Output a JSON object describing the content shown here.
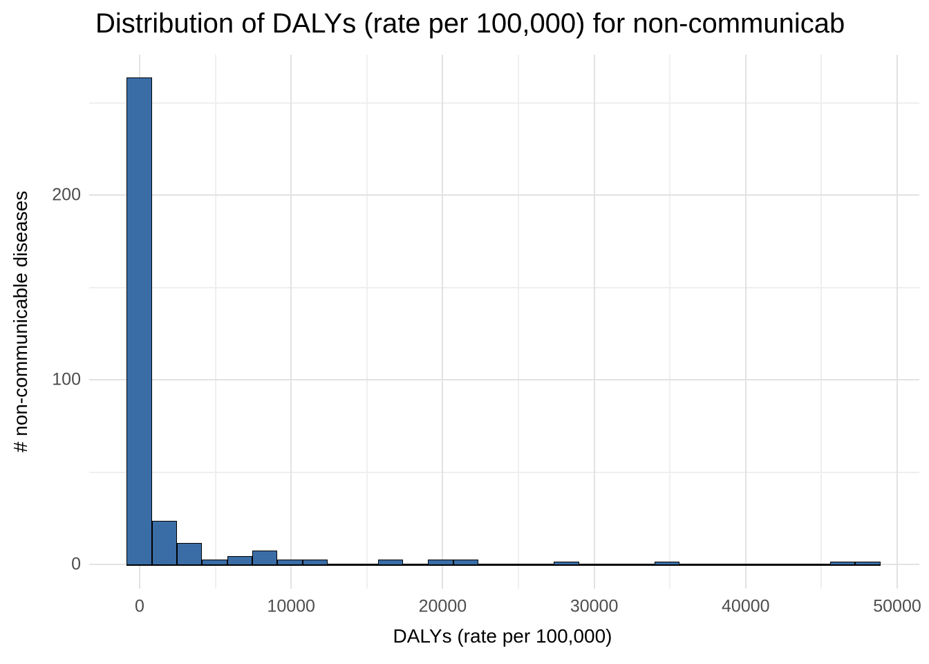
{
  "chart_data": {
    "type": "bar",
    "subtype": "histogram",
    "title": "Distribution of DALYs (rate per 100,000) for non-communicab",
    "xlabel": "DALYs (rate per 100,000)",
    "ylabel": "# non-communicable diseases",
    "bin_start": -850,
    "bin_width": 1658,
    "counts": [
      263,
      23,
      11,
      2,
      4,
      7,
      2,
      2,
      0,
      0,
      2,
      0,
      2,
      2,
      0,
      0,
      0,
      1,
      0,
      0,
      0,
      1,
      0,
      0,
      0,
      0,
      0,
      0,
      1,
      1
    ],
    "x_axis": {
      "ticks": [
        0,
        10000,
        20000,
        30000,
        40000,
        50000
      ],
      "tick_labels": [
        "0",
        "10000",
        "20000",
        "30000",
        "40000",
        "50000"
      ],
      "minor_ticks": [
        5000,
        15000,
        25000,
        35000,
        45000
      ],
      "range": [
        -3350,
        51400
      ]
    },
    "y_axis": {
      "ticks": [
        0,
        100,
        200
      ],
      "tick_labels": [
        "0",
        "100",
        "200"
      ],
      "minor_ticks": [
        50,
        150,
        250
      ],
      "range": [
        -13,
        290
      ]
    },
    "grid": true,
    "legend": false,
    "colors": {
      "bar_fill": "#3A6DA6",
      "bar_stroke": "#000000",
      "grid_major": "#E2E2E2",
      "grid_minor": "#EFEFEF",
      "tick_label": "#4D4D4D",
      "axis_title": "#000000",
      "background": "#FFFFFF"
    }
  }
}
